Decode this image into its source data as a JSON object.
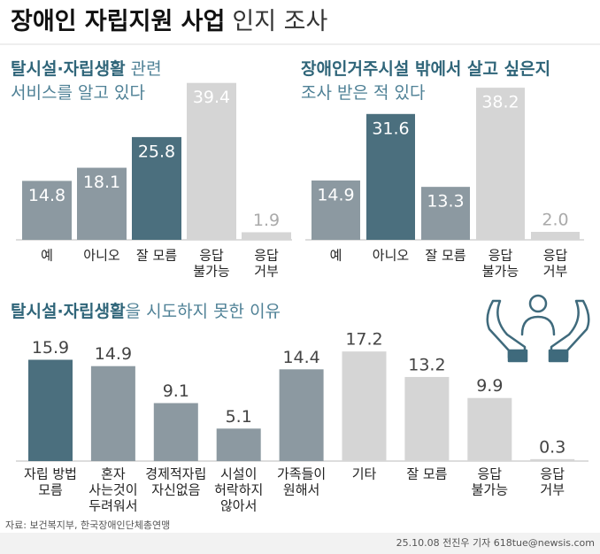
{
  "title": {
    "bold": "장애인 자립지원 사업",
    "light": "인지 조사"
  },
  "chart_data": [
    {
      "type": "bar",
      "title_lines": [
        {
          "bold": "탈시설·자립생활",
          "text": "관련"
        },
        {
          "text": "서비스를 알고 있다"
        }
      ],
      "categories": [
        [
          "예"
        ],
        [
          "아니오"
        ],
        [
          "잘 모름"
        ],
        [
          "응답",
          "불가능"
        ],
        [
          "응답",
          "거부"
        ]
      ],
      "values": [
        14.8,
        18.1,
        25.8,
        39.4,
        1.9
      ],
      "colors": [
        "#8c99a1",
        "#8c99a1",
        "#4b6f7e",
        "#d5d5d5",
        "#d5d5d5"
      ],
      "label_inside": true,
      "ylim": [
        0,
        40
      ]
    },
    {
      "type": "bar",
      "title_lines": [
        {
          "bold": "장애인거주시설 밖에서 살고 싶은지"
        },
        {
          "text": "조사 받은 적 있다"
        }
      ],
      "categories": [
        [
          "예"
        ],
        [
          "아니오"
        ],
        [
          "잘 모름"
        ],
        [
          "응답",
          "불가능"
        ],
        [
          "응답",
          "거부"
        ]
      ],
      "values": [
        14.9,
        31.6,
        13.3,
        38.2,
        2.0
      ],
      "value_labels": [
        "14.9",
        "31.6",
        "13.3",
        "38.2",
        "2.0"
      ],
      "colors": [
        "#8c99a1",
        "#4b6f7e",
        "#8c99a1",
        "#d5d5d5",
        "#d5d5d5"
      ],
      "label_inside": true,
      "ylim": [
        0,
        40
      ]
    },
    {
      "type": "bar",
      "title_lines": [
        {
          "bold": "탈시설·자립생활",
          "text": "을 시도하지 못한 이유"
        }
      ],
      "categories": [
        [
          "자립 방법",
          "모름"
        ],
        [
          "혼자",
          "사는것이",
          "두려워서"
        ],
        [
          "경제적자립",
          "자신없음"
        ],
        [
          "시설이",
          "허락하지",
          "않아서"
        ],
        [
          "가족들이",
          "원해서"
        ],
        [
          "기타"
        ],
        [
          "잘 모름"
        ],
        [
          "응답",
          "불가능"
        ],
        [
          "응답",
          "거부"
        ]
      ],
      "values": [
        15.9,
        14.9,
        9.1,
        5.1,
        14.4,
        17.2,
        13.2,
        9.9,
        0.3
      ],
      "colors": [
        "#4b6f7e",
        "#8c99a1",
        "#8c99a1",
        "#8c99a1",
        "#8c99a1",
        "#d5d5d5",
        "#d5d5d5",
        "#d5d5d5",
        "#d5d5d5"
      ],
      "label_inside": false,
      "ylim": [
        0,
        20
      ]
    }
  ],
  "source": "자료: 보건복지부, 한국장애인단체총연맹",
  "credit": "25.10.08 전진우 기자 618tue@newsis.com"
}
